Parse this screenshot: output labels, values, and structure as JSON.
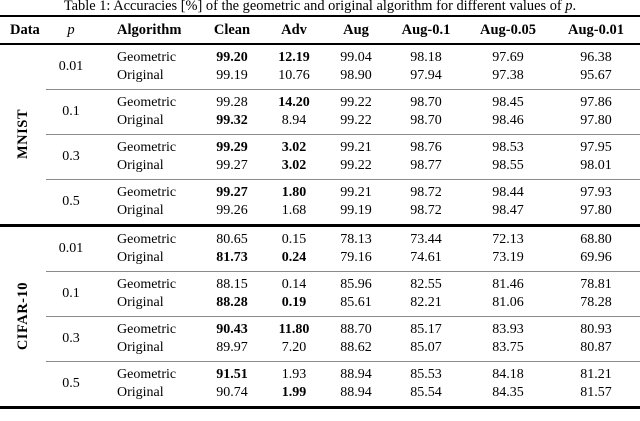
{
  "caption": {
    "prefix": "Table 1: Accuracies [%] of the geometric and original algorithm for different values of ",
    "var": "p",
    "suffix": "."
  },
  "colors": {
    "background": "#ffffff",
    "text": "#000000",
    "rule_black": "#000000",
    "separator_gray": "#8a8a8a"
  },
  "table": {
    "headers": [
      {
        "key": "data",
        "label": "Data"
      },
      {
        "key": "p",
        "label": "p"
      },
      {
        "key": "algorithm",
        "label": "Algorithm"
      },
      {
        "key": "clean",
        "label": "Clean"
      },
      {
        "key": "adv",
        "label": "Adv"
      },
      {
        "key": "aug",
        "label": "Aug"
      },
      {
        "key": "aug01",
        "label": "Aug-0.1"
      },
      {
        "key": "aug005",
        "label": "Aug-0.05"
      },
      {
        "key": "aug001",
        "label": "Aug-0.01"
      }
    ],
    "value_columns": [
      "clean",
      "adv",
      "aug",
      "aug-0.1",
      "aug-0.05",
      "aug-0.01"
    ],
    "sections": [
      {
        "dataset": "MNIST",
        "groups": [
          {
            "p": "0.01",
            "rows": [
              {
                "algorithm": "Geometric",
                "values": [
                  "99.20",
                  "12.19",
                  "99.04",
                  "98.18",
                  "97.69",
                  "96.38"
                ],
                "bold": [
                  true,
                  true,
                  false,
                  false,
                  false,
                  false
                ]
              },
              {
                "algorithm": "Original",
                "values": [
                  "99.19",
                  "10.76",
                  "98.90",
                  "97.94",
                  "97.38",
                  "95.67"
                ],
                "bold": [
                  false,
                  false,
                  false,
                  false,
                  false,
                  false
                ]
              }
            ]
          },
          {
            "p": "0.1",
            "rows": [
              {
                "algorithm": "Geometric",
                "values": [
                  "99.28",
                  "14.20",
                  "99.22",
                  "98.70",
                  "98.45",
                  "97.86"
                ],
                "bold": [
                  false,
                  true,
                  false,
                  false,
                  false,
                  false
                ]
              },
              {
                "algorithm": "Original",
                "values": [
                  "99.32",
                  "8.94",
                  "99.22",
                  "98.70",
                  "98.46",
                  "97.80"
                ],
                "bold": [
                  true,
                  false,
                  false,
                  false,
                  false,
                  false
                ]
              }
            ]
          },
          {
            "p": "0.3",
            "rows": [
              {
                "algorithm": "Geometric",
                "values": [
                  "99.29",
                  "3.02",
                  "99.21",
                  "98.76",
                  "98.53",
                  "97.95"
                ],
                "bold": [
                  true,
                  true,
                  false,
                  false,
                  false,
                  false
                ]
              },
              {
                "algorithm": "Original",
                "values": [
                  "99.27",
                  "3.02",
                  "99.22",
                  "98.77",
                  "98.55",
                  "98.01"
                ],
                "bold": [
                  false,
                  true,
                  false,
                  false,
                  false,
                  false
                ]
              }
            ]
          },
          {
            "p": "0.5",
            "rows": [
              {
                "algorithm": "Geometric",
                "values": [
                  "99.27",
                  "1.80",
                  "99.21",
                  "98.72",
                  "98.44",
                  "97.93"
                ],
                "bold": [
                  true,
                  true,
                  false,
                  false,
                  false,
                  false
                ]
              },
              {
                "algorithm": "Original",
                "values": [
                  "99.26",
                  "1.68",
                  "99.19",
                  "98.72",
                  "98.47",
                  "97.80"
                ],
                "bold": [
                  false,
                  false,
                  false,
                  false,
                  false,
                  false
                ]
              }
            ]
          }
        ]
      },
      {
        "dataset": "CIFAR-10",
        "groups": [
          {
            "p": "0.01",
            "rows": [
              {
                "algorithm": "Geometric",
                "values": [
                  "80.65",
                  "0.15",
                  "78.13",
                  "73.44",
                  "72.13",
                  "68.80"
                ],
                "bold": [
                  false,
                  false,
                  false,
                  false,
                  false,
                  false
                ]
              },
              {
                "algorithm": "Original",
                "values": [
                  "81.73",
                  "0.24",
                  "79.16",
                  "74.61",
                  "73.19",
                  "69.96"
                ],
                "bold": [
                  true,
                  true,
                  false,
                  false,
                  false,
                  false
                ]
              }
            ]
          },
          {
            "p": "0.1",
            "rows": [
              {
                "algorithm": "Geometric",
                "values": [
                  "88.15",
                  "0.14",
                  "85.96",
                  "82.55",
                  "81.46",
                  "78.81"
                ],
                "bold": [
                  false,
                  false,
                  false,
                  false,
                  false,
                  false
                ]
              },
              {
                "algorithm": "Original",
                "values": [
                  "88.28",
                  "0.19",
                  "85.61",
                  "82.21",
                  "81.06",
                  "78.28"
                ],
                "bold": [
                  true,
                  true,
                  false,
                  false,
                  false,
                  false
                ]
              }
            ]
          },
          {
            "p": "0.3",
            "rows": [
              {
                "algorithm": "Geometric",
                "values": [
                  "90.43",
                  "11.80",
                  "88.70",
                  "85.17",
                  "83.93",
                  "80.93"
                ],
                "bold": [
                  true,
                  true,
                  false,
                  false,
                  false,
                  false
                ]
              },
              {
                "algorithm": "Original",
                "values": [
                  "89.97",
                  "7.20",
                  "88.62",
                  "85.07",
                  "83.75",
                  "80.87"
                ],
                "bold": [
                  false,
                  false,
                  false,
                  false,
                  false,
                  false
                ]
              }
            ]
          },
          {
            "p": "0.5",
            "rows": [
              {
                "algorithm": "Geometric",
                "values": [
                  "91.51",
                  "1.93",
                  "88.94",
                  "85.53",
                  "84.18",
                  "81.21"
                ],
                "bold": [
                  true,
                  false,
                  false,
                  false,
                  false,
                  false
                ]
              },
              {
                "algorithm": "Original",
                "values": [
                  "90.74",
                  "1.99",
                  "88.94",
                  "85.54",
                  "84.35",
                  "81.57"
                ],
                "bold": [
                  false,
                  true,
                  false,
                  false,
                  false,
                  false
                ]
              }
            ]
          }
        ]
      }
    ]
  }
}
